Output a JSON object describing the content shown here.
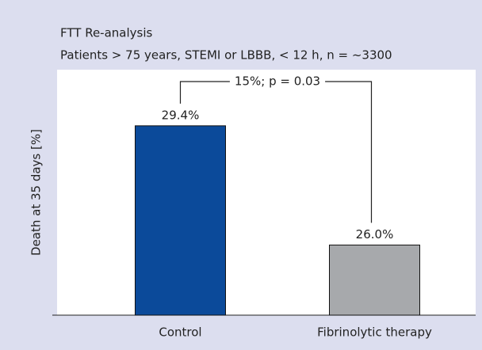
{
  "chart_data": {
    "type": "bar",
    "title": "FTT Re-analysis",
    "subtitle": "Patients > 75 years, STEMI or LBBB, < 12 h, n = ~3300",
    "y_label": "Death at 35 days [%]",
    "annotation": "15%; p = 0.03",
    "categories": [
      "Control",
      "Fibrinolytic therapy"
    ],
    "values": [
      29.4,
      26.0
    ],
    "value_labels": [
      "29.4%",
      "26.0%"
    ],
    "colors": [
      "#0b4a9a",
      "#a7a9ac"
    ],
    "ylim": [
      24,
      31
    ]
  }
}
